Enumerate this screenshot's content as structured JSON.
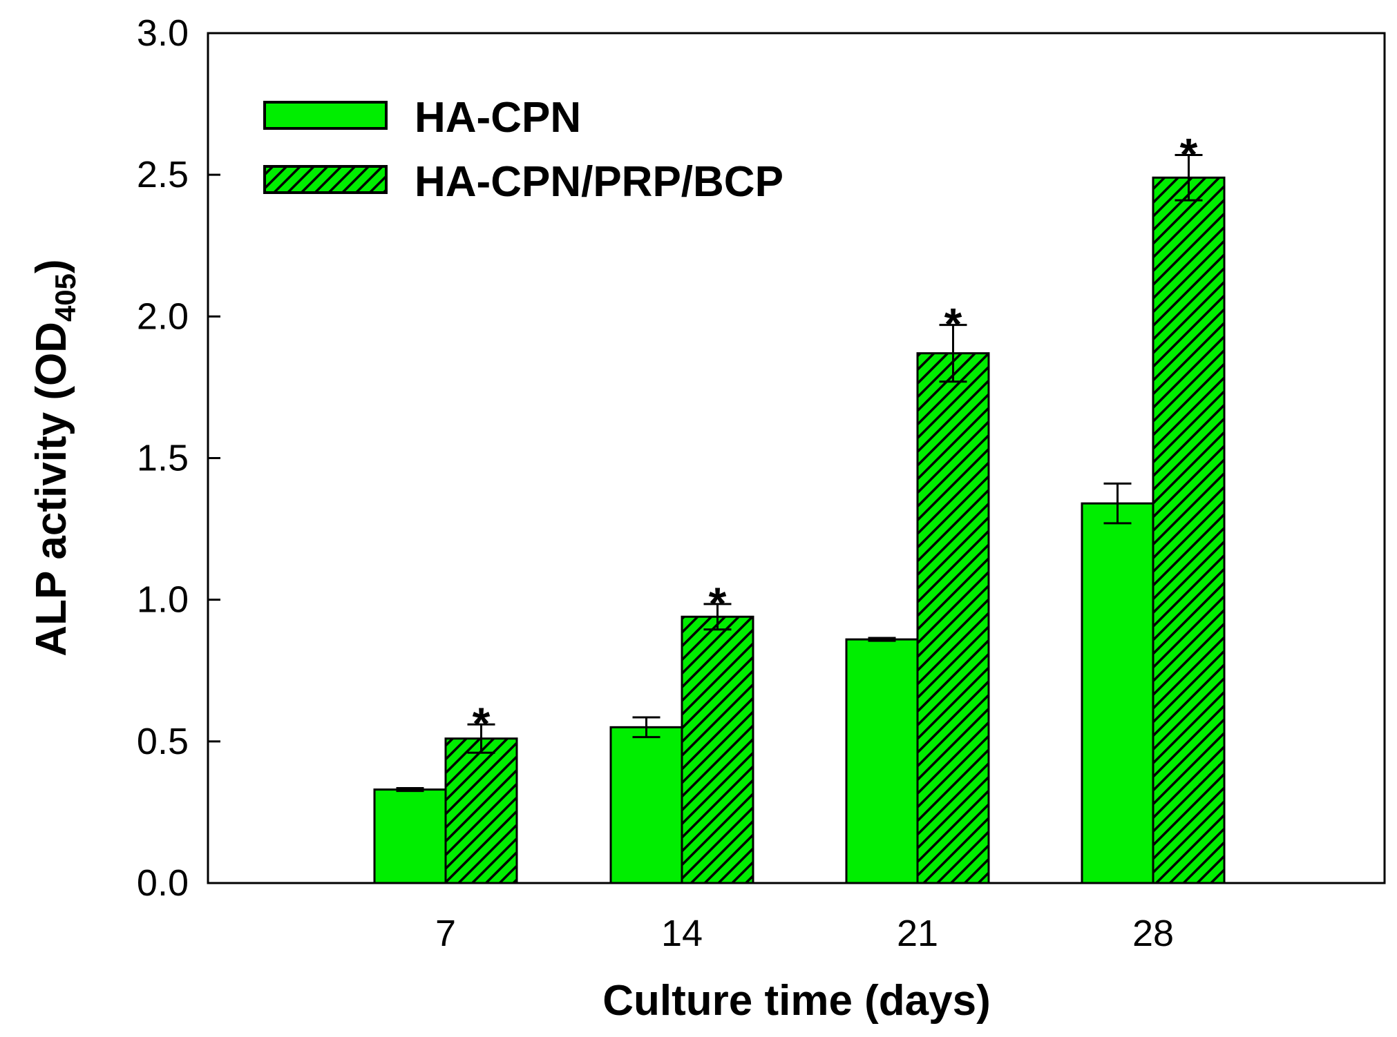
{
  "chart_data": {
    "type": "bar",
    "xlabel": "Culture time (days)",
    "ylabel": "ALP activity (OD",
    "ylabel_sub": "405",
    "ylabel_close": ")",
    "ylim": [
      0,
      3.0
    ],
    "yticks": [
      "0.0",
      "0.5",
      "1.0",
      "1.5",
      "2.0",
      "2.5",
      "3.0"
    ],
    "categories": [
      "7",
      "14",
      "21",
      "28"
    ],
    "legend_position": "top-left",
    "grid": false,
    "significance_marker": "*",
    "series": [
      {
        "name": "HA-CPN",
        "values": [
          0.33,
          0.55,
          0.86,
          1.34
        ],
        "errors": [
          0.005,
          0.035,
          0.005,
          0.07
        ],
        "significant": [
          false,
          false,
          false,
          false
        ],
        "color": "#00ee00",
        "pattern": "solid"
      },
      {
        "name": "HA-CPN/PRP/BCP",
        "values": [
          0.51,
          0.94,
          1.87,
          2.49
        ],
        "errors": [
          0.05,
          0.045,
          0.1,
          0.08
        ],
        "significant": [
          true,
          true,
          true,
          true
        ],
        "color": "#00ee00",
        "pattern": "hatched"
      }
    ]
  }
}
